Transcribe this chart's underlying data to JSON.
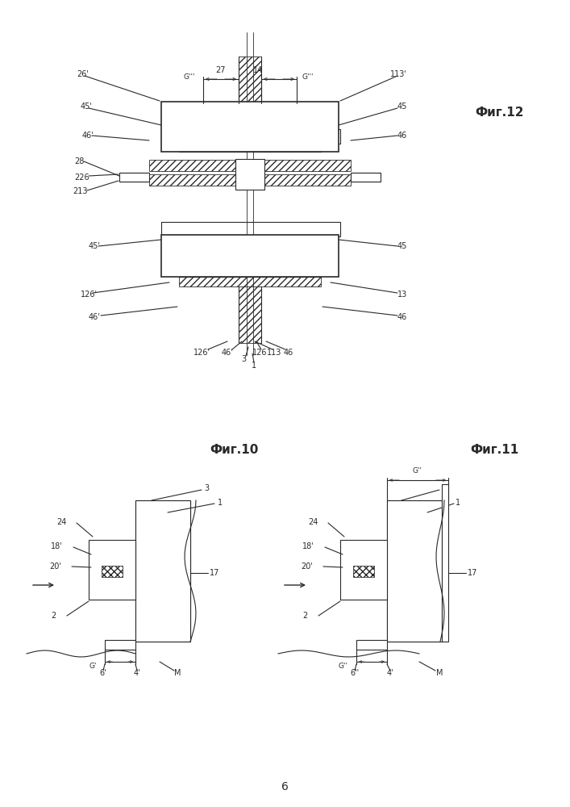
{
  "bg_color": "#ffffff",
  "line_color": "#2a2a2a",
  "fig_width": 7.07,
  "fig_height": 10.0,
  "fig12_label": "Фиг.12",
  "fig10_label": "Фиг.10",
  "fig11_label": "Фиг.11",
  "page_label": "6"
}
